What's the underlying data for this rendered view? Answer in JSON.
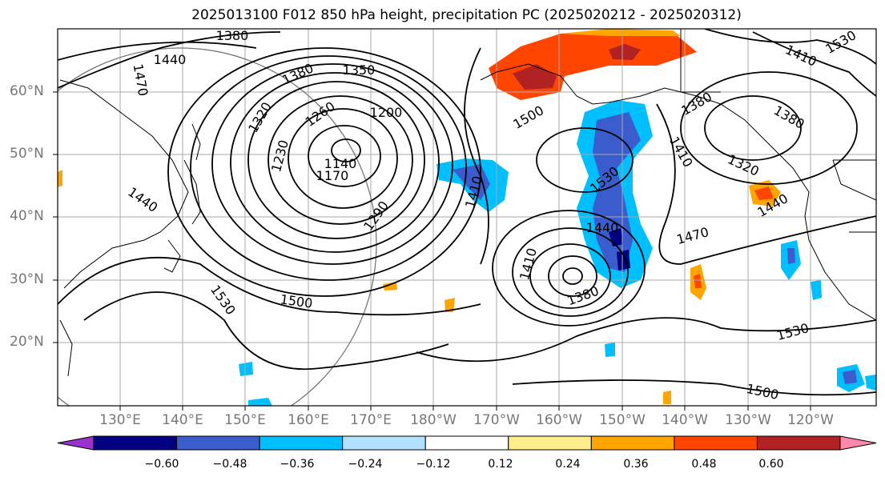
{
  "title": "2025013100 F012 850 hPa height, precipitation PC (2025020212 - 2025020312)",
  "lat_labels": [
    "60°N",
    "50°N",
    "40°N",
    "30°N",
    "20°N"
  ],
  "lon_labels": [
    "130°E",
    "140°E",
    "150°E",
    "160°E",
    "170°E",
    "180°W",
    "170°W",
    "160°W",
    "150°W",
    "140°W",
    "130°W",
    "120°W"
  ],
  "contour_labels": [
    "1380",
    "1440",
    "1470",
    "1380",
    "1350",
    "1320",
    "1260",
    "1200",
    "1230",
    "1140",
    "1170",
    "1440",
    "1290",
    "1410",
    "1500",
    "1530",
    "1440",
    "1410",
    "1380",
    "1530",
    "1470",
    "1500",
    "1410",
    "1320",
    "1380",
    "1440",
    "1530",
    "1500",
    "1380",
    "1530",
    "1410"
  ],
  "colorbar": {
    "ticks": [
      "−0.60",
      "−0.48",
      "−0.36",
      "−0.24",
      "−0.12",
      "0.12",
      "0.24",
      "0.36",
      "0.48",
      "0.60"
    ],
    "colors": [
      "#9932cc",
      "#000080",
      "#3a5ccc",
      "#00bfff",
      "#b0e2ff",
      "#ffffff",
      "#ffec8b",
      "#ffa500",
      "#ff4500",
      "#b22222",
      "#ff88aa"
    ]
  }
}
